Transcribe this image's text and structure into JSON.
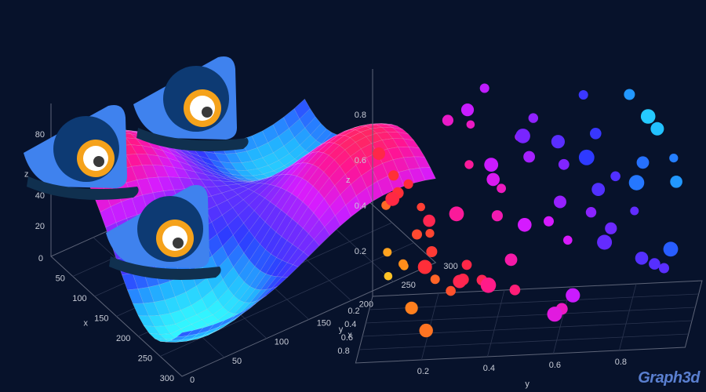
{
  "brand": {
    "name": "Graph3d"
  },
  "colors": {
    "background": "#07122b",
    "axis": "#5d6478",
    "tick_text": "#c7cbd6",
    "mascot_blue": "#3f82ee",
    "mascot_dark": "#0d3a73",
    "mascot_hat": "#10304f",
    "mascot_iris": "#f5a21b",
    "mascot_pupil": "#3a3a3a"
  },
  "chart_data": [
    {
      "type": "surface",
      "xlabel": "x",
      "ylabel": "y",
      "zlabel": "z",
      "x_ticks": [
        "0",
        "50",
        "100",
        "150",
        "200",
        "250",
        "300"
      ],
      "y_ticks": [
        "0",
        "50",
        "100",
        "150",
        "200",
        "250",
        "300"
      ],
      "z_ticks": [
        "20",
        "40",
        "60",
        "80"
      ],
      "xlim": [
        0,
        300
      ],
      "ylim": [
        0,
        300
      ],
      "zlim": [
        0,
        100
      ],
      "grid": true,
      "colorscale": [
        "#ffff33",
        "#ff3b30",
        "#ff1493",
        "#d61cff",
        "#6f2cff",
        "#2e3cff",
        "#22b5ff",
        "#35ffff"
      ]
    },
    {
      "type": "scatter3d",
      "xlabel": "x",
      "ylabel": "y",
      "zlabel": "z",
      "x_ticks": [
        "0.2",
        "0.4",
        "0.6",
        "0.8"
      ],
      "y_ticks": [
        "0.2",
        "0.4",
        "0.6",
        "0.8"
      ],
      "z_ticks": [
        "0.2",
        "0.4",
        "0.6",
        "0.8"
      ],
      "xlim": [
        0,
        1
      ],
      "ylim": [
        0,
        1
      ],
      "zlim": [
        0,
        1
      ],
      "grid": true,
      "colorscale": [
        "#ffff33",
        "#ff8c1a",
        "#ff2a3a",
        "#ff1a8c",
        "#d51aff",
        "#7a25ff",
        "#2b3bff",
        "#1fb6ff",
        "#35ffff"
      ],
      "points": [
        [
          0.05,
          0.05,
          0.1
        ],
        [
          0.08,
          0.1,
          0.15
        ],
        [
          0.1,
          0.05,
          0.22
        ],
        [
          0.15,
          0.1,
          0.18
        ],
        [
          0.12,
          0.18,
          0.3
        ],
        [
          0.06,
          0.15,
          0.4
        ],
        [
          0.18,
          0.05,
          0.45
        ],
        [
          0.2,
          0.2,
          0.12
        ],
        [
          0.22,
          0.12,
          0.55
        ],
        [
          0.14,
          0.3,
          0.6
        ],
        [
          0.25,
          0.25,
          0.08
        ],
        [
          0.3,
          0.15,
          0.35
        ],
        [
          0.28,
          0.3,
          0.2
        ],
        [
          0.18,
          0.4,
          0.5
        ],
        [
          0.32,
          0.08,
          0.62
        ],
        [
          0.35,
          0.35,
          0.15
        ],
        [
          0.1,
          0.45,
          0.7
        ],
        [
          0.4,
          0.2,
          0.3
        ],
        [
          0.24,
          0.5,
          0.82
        ],
        [
          0.42,
          0.4,
          0.45
        ],
        [
          0.45,
          0.1,
          0.58
        ],
        [
          0.3,
          0.55,
          0.38
        ],
        [
          0.5,
          0.3,
          0.2
        ],
        [
          0.38,
          0.6,
          0.65
        ],
        [
          0.48,
          0.5,
          0.72
        ],
        [
          0.55,
          0.2,
          0.48
        ],
        [
          0.2,
          0.65,
          0.9
        ],
        [
          0.58,
          0.45,
          0.3
        ],
        [
          0.6,
          0.6,
          0.55
        ],
        [
          0.45,
          0.7,
          0.8
        ],
        [
          0.62,
          0.15,
          0.12
        ],
        [
          0.66,
          0.4,
          0.68
        ],
        [
          0.52,
          0.75,
          0.4
        ],
        [
          0.7,
          0.3,
          0.25
        ],
        [
          0.72,
          0.6,
          0.85
        ],
        [
          0.4,
          0.8,
          0.95
        ],
        [
          0.75,
          0.5,
          0.5
        ],
        [
          0.68,
          0.72,
          0.62
        ],
        [
          0.8,
          0.2,
          0.35
        ],
        [
          0.78,
          0.4,
          0.78
        ],
        [
          0.82,
          0.65,
          0.2
        ],
        [
          0.58,
          0.85,
          0.7
        ],
        [
          0.85,
          0.5,
          0.92
        ],
        [
          0.88,
          0.3,
          0.6
        ],
        [
          0.9,
          0.75,
          0.45
        ],
        [
          0.7,
          0.9,
          0.88
        ],
        [
          0.92,
          0.6,
          0.15
        ],
        [
          0.95,
          0.85,
          0.72
        ],
        [
          0.35,
          0.45,
          0.1
        ],
        [
          0.15,
          0.6,
          0.25
        ],
        [
          0.05,
          0.3,
          0.75
        ],
        [
          0.25,
          0.75,
          0.55
        ],
        [
          0.5,
          0.6,
          0.05
        ],
        [
          0.65,
          0.85,
          0.3
        ],
        [
          0.85,
          0.88,
          0.98
        ],
        [
          0.6,
          0.05,
          0.8
        ],
        [
          0.1,
          0.8,
          0.35
        ],
        [
          0.3,
          0.9,
          0.15
        ],
        [
          0.78,
          0.1,
          0.65
        ],
        [
          0.95,
          0.4,
          0.3
        ],
        [
          0.42,
          0.25,
          0.88
        ],
        [
          0.55,
          0.95,
          0.6
        ],
        [
          0.88,
          0.95,
          0.4
        ],
        [
          0.2,
          0.35,
          0.95
        ],
        [
          0.73,
          0.2,
          0.05
        ],
        [
          0.98,
          0.7,
          0.85
        ],
        [
          0.33,
          0.68,
          0.42
        ],
        [
          0.47,
          0.88,
          0.22
        ],
        [
          0.12,
          0.92,
          0.58
        ],
        [
          0.62,
          0.32,
          0.98
        ]
      ]
    }
  ]
}
